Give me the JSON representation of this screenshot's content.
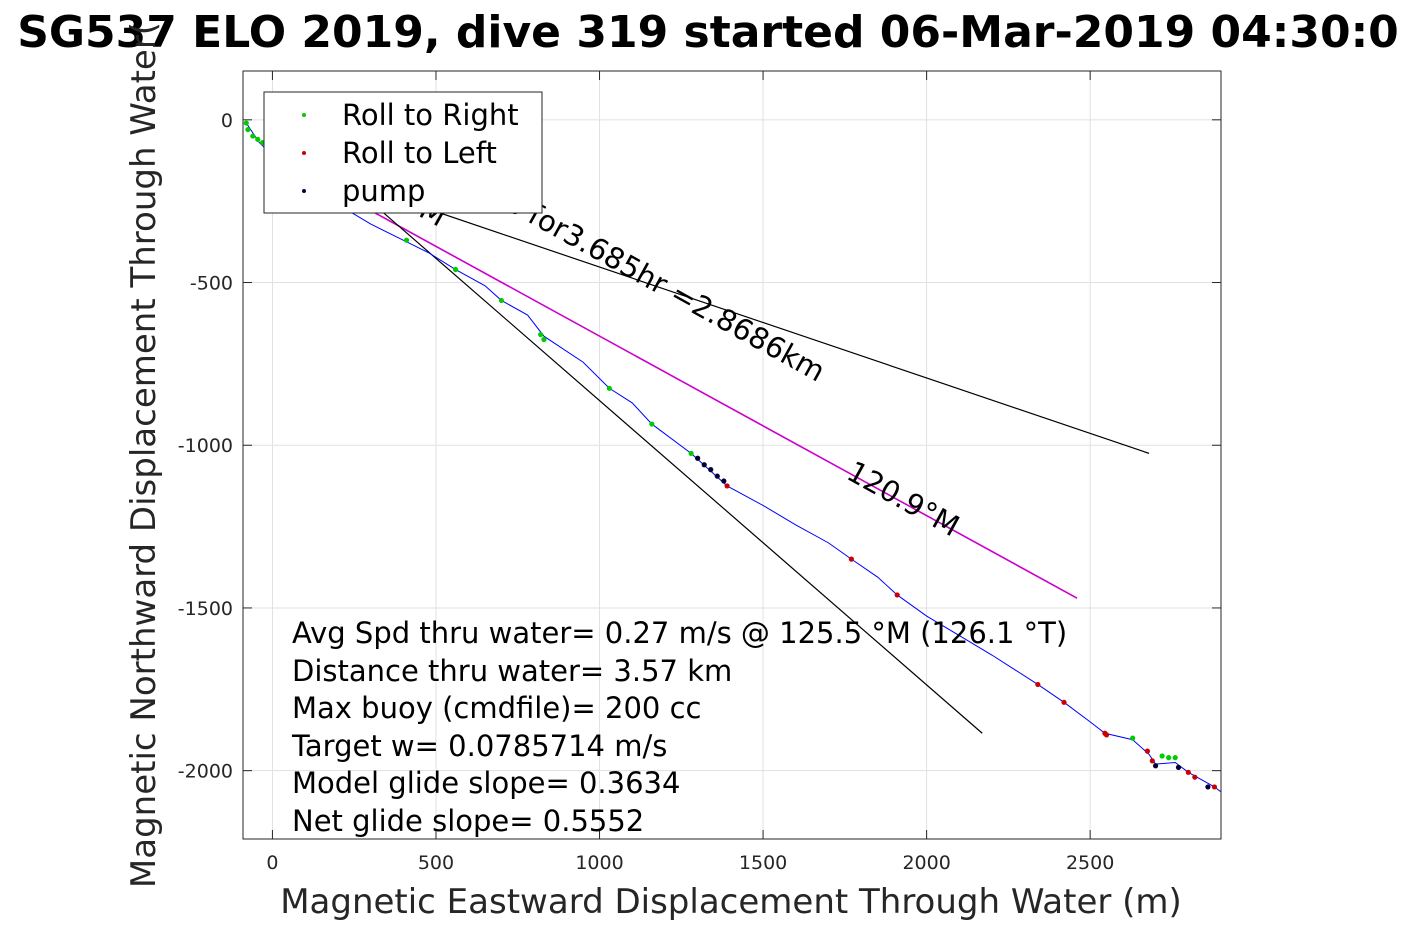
{
  "chart_data": {
    "type": "scatter",
    "title": "SG537 ELO 2019, dive 319 started 06-Mar-2019 04:30:0",
    "xlabel": "Magnetic Eastward Displacement Through Water (m)",
    "ylabel": "Magnetic Northward Displacement Through Water(",
    "xlim": [
      -90,
      2900
    ],
    "ylim": [
      -2210,
      150
    ],
    "xticks": [
      0,
      500,
      1000,
      1500,
      2000,
      2500
    ],
    "yticks": [
      0,
      -500,
      -1000,
      -1500,
      -2000
    ],
    "xtick_labels": [
      "0",
      "500",
      "1000",
      "1500",
      "2000",
      "2500"
    ],
    "ytick_labels": [
      "0",
      "-500",
      "-1000",
      "-1500",
      "-2000"
    ],
    "grid": true,
    "legend_position": "top-left",
    "colors": {
      "track": "#0000ff",
      "roll_right": "#00cc00",
      "roll_left": "#cc0000",
      "pump": "#000033",
      "vector": "#cc00cc",
      "reference": "#000000"
    },
    "series": [
      {
        "name": "Roll to Right",
        "x": [
          -80,
          -75,
          -60,
          -45,
          -30,
          410,
          560,
          700,
          820,
          830,
          1030,
          1160,
          1280,
          2630,
          2720,
          2740,
          2760
        ],
        "y": [
          -10,
          -30,
          -50,
          -60,
          -70,
          -370,
          -460,
          -555,
          -660,
          -675,
          -825,
          -935,
          -1025,
          -1900,
          -1955,
          -1960,
          -1960
        ]
      },
      {
        "name": "Roll to Left",
        "x": [
          1390,
          1770,
          1910,
          2340,
          2420,
          2545,
          2550,
          2675,
          2690,
          2800,
          2820,
          2880
        ],
        "y": [
          -1125,
          -1350,
          -1460,
          -1735,
          -1790,
          -1885,
          -1890,
          -1940,
          -1970,
          -2005,
          -2020,
          -2050
        ]
      },
      {
        "name": "pump",
        "x": [
          1300,
          1320,
          1340,
          1360,
          1380,
          2700,
          2770,
          2860
        ],
        "y": [
          -1040,
          -1060,
          -1075,
          -1095,
          -1110,
          -1985,
          -1990,
          -2050
        ]
      }
    ],
    "track": {
      "x": [
        -80,
        -40,
        0,
        100,
        200,
        300,
        400,
        480,
        560,
        650,
        700,
        780,
        830,
        950,
        1030,
        1100,
        1160,
        1280,
        1390,
        1500,
        1600,
        1700,
        1770,
        1850,
        1910,
        2000,
        2100,
        2200,
        2340,
        2420,
        2500,
        2545,
        2630,
        2680,
        2700,
        2760,
        2800,
        2880,
        2900
      ],
      "y": [
        -10,
        -70,
        -110,
        -190,
        -260,
        -320,
        -370,
        -410,
        -460,
        -510,
        -555,
        -600,
        -665,
        -745,
        -825,
        -870,
        -935,
        -1025,
        -1125,
        -1185,
        -1245,
        -1300,
        -1350,
        -1405,
        -1460,
        -1525,
        -1585,
        -1645,
        -1735,
        -1790,
        -1850,
        -1885,
        -1905,
        -1950,
        -1980,
        -1975,
        -2005,
        -2050,
        -2065
      ]
    },
    "reference_lines": [
      {
        "kind": "vector",
        "x": [
          230,
          2460
        ],
        "y": [
          -240,
          -1470
        ]
      },
      {
        "kind": "bound-upper",
        "x": [
          230,
          2680
        ],
        "y": [
          -190,
          -1025
        ]
      },
      {
        "kind": "bound-lower",
        "x": [
          230,
          2170
        ],
        "y": [
          -190,
          -1885
        ]
      }
    ],
    "line_labels": [
      {
        "text": "4m/s for3.685hr =2.8686km",
        "x": 560,
        "y": -190,
        "angle": 29
      },
      {
        "text": "120.9°M",
        "x": 1750,
        "y": -1100,
        "angle": 29
      },
      {
        "text": ".9°M",
        "x": 330,
        "y": -230,
        "angle": 29
      }
    ],
    "annotations": [
      "Avg Spd thru water=  0.27 m/s @ 125.5 °M (126.1 °T)",
      "Distance thru water=  3.57 km",
      "Max buoy (cmdfile)= 200 cc",
      "Target w= 0.0785714 m/s",
      "Model glide slope= 0.3634",
      "Net glide slope= 0.5552"
    ]
  }
}
